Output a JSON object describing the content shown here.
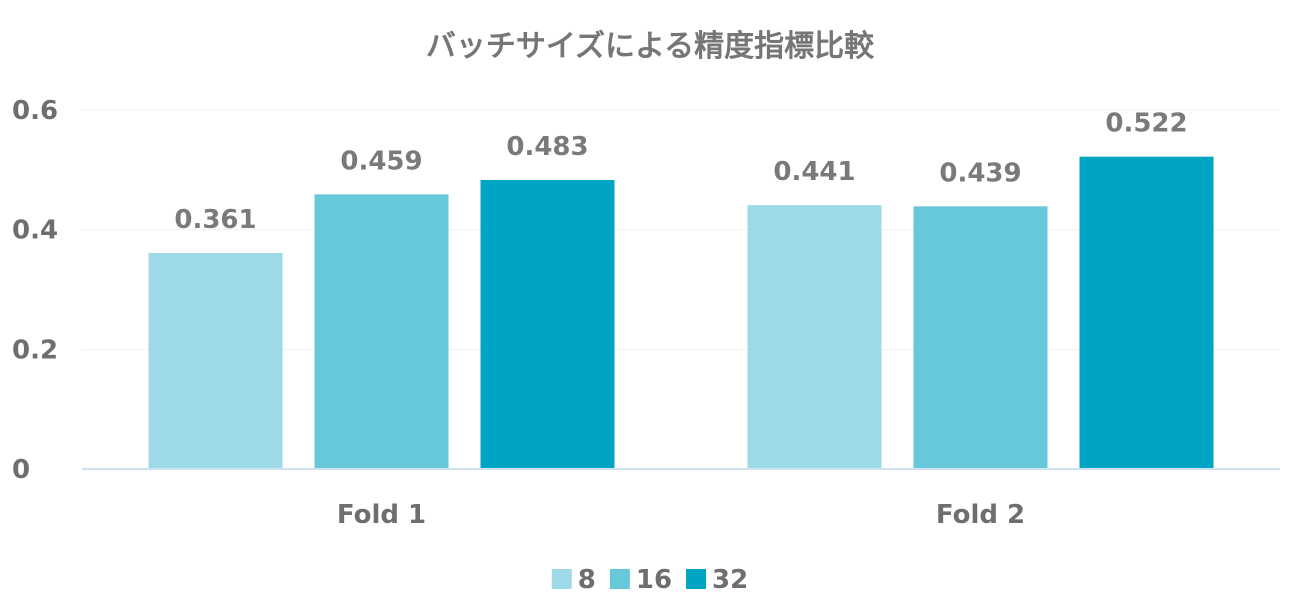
{
  "chart_data": {
    "type": "bar",
    "title": "バッチサイズによる精度指標比較",
    "categories": [
      "Fold 1",
      "Fold 2"
    ],
    "series": [
      {
        "name": "8",
        "values": [
          0.361,
          0.441
        ],
        "color": "#9dd9e6"
      },
      {
        "name": "16",
        "values": [
          0.459,
          0.439
        ],
        "color": "#67c8d9"
      },
      {
        "name": "32",
        "values": [
          0.483,
          0.522
        ],
        "color": "#00a5c3"
      }
    ],
    "y_ticks": [
      0,
      0.2,
      0.4,
      0.6
    ],
    "y_tick_labels": [
      "0",
      "0.2",
      "0.4",
      "0.6"
    ],
    "ylim": [
      0,
      0.6
    ],
    "xlabel": "",
    "ylabel": "",
    "grid": true,
    "legend_position": "bottom-center",
    "data_labels": [
      [
        "0.361",
        "0.441"
      ],
      [
        "0.459",
        "0.439"
      ],
      [
        "0.483",
        "0.522"
      ]
    ]
  }
}
